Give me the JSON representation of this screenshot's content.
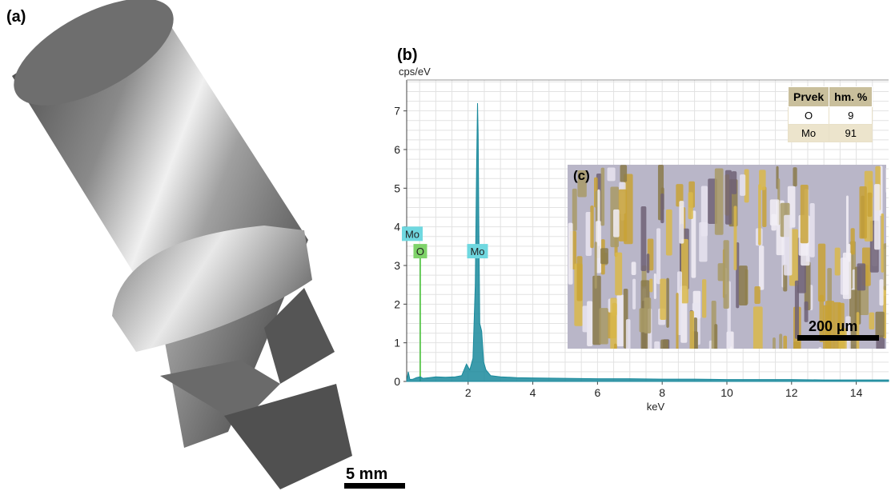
{
  "panels": {
    "a": "(a)",
    "b": "(b)",
    "c": "(c)"
  },
  "scale_a": "5 mm",
  "scale_c": "200 µm",
  "table": {
    "headers": [
      "Prvek",
      "hm. %"
    ],
    "rows": [
      [
        "O",
        "9"
      ],
      [
        "Mo",
        "91"
      ]
    ]
  },
  "chart_data": {
    "type": "line",
    "title": "",
    "xlabel": "keV",
    "ylabel": "cps/eV",
    "xlim": [
      0.1,
      15
    ],
    "ylim": [
      0,
      7.8
    ],
    "xticks": [
      "2",
      "4",
      "6",
      "8",
      "10",
      "12",
      "14"
    ],
    "yticks": [
      "0",
      "1",
      "2",
      "3",
      "4",
      "5",
      "6",
      "7"
    ],
    "series": [
      {
        "x": [
          0.1,
          0.15,
          0.2,
          0.3,
          0.4,
          0.52,
          0.6,
          0.8,
          1.0,
          1.3,
          1.6,
          1.8,
          1.95,
          2.05,
          2.15,
          2.22,
          2.26,
          2.29,
          2.31,
          2.33,
          2.36,
          2.39,
          2.42,
          2.48,
          2.55,
          2.7,
          3.0,
          3.5,
          4.0,
          5.0,
          6.0,
          7.0,
          8.0,
          9.0,
          10.0,
          11.0,
          12.0,
          13.0,
          14.0,
          15.0
        ],
        "y": [
          0.0,
          0.25,
          0.05,
          0.06,
          0.1,
          0.12,
          0.08,
          0.1,
          0.12,
          0.11,
          0.12,
          0.15,
          0.45,
          0.3,
          0.6,
          2.5,
          5.5,
          7.2,
          6.4,
          4.2,
          1.5,
          1.4,
          1.3,
          0.5,
          0.3,
          0.15,
          0.12,
          0.1,
          0.09,
          0.08,
          0.07,
          0.07,
          0.06,
          0.06,
          0.05,
          0.05,
          0.05,
          0.04,
          0.04,
          0.04
        ]
      }
    ],
    "peak_labels": [
      {
        "text": "Mo",
        "x": 0.1,
        "y": 3.8,
        "color": "#6fd8e0"
      },
      {
        "text": "O",
        "x": 0.52,
        "y": 3.35,
        "color": "#7fd36a"
      },
      {
        "text": "Mo",
        "x": 2.29,
        "y": 3.35,
        "color": "#6fd8e0"
      }
    ],
    "grid": true,
    "colors": {
      "spectrum": "#1a8a9c",
      "o_line": "#3fbf2f"
    }
  }
}
